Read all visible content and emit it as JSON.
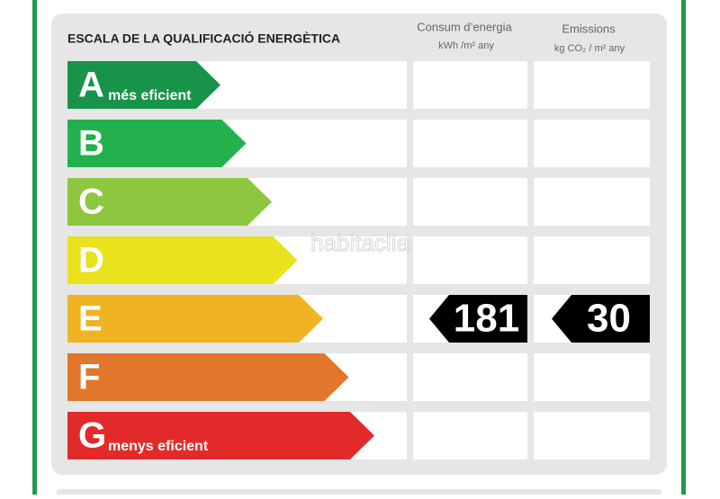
{
  "header": {
    "title": "ESCALA DE LA QUALIFICACIÓ ENERGÈTICA"
  },
  "columns": [
    {
      "title": "Consum d’energia",
      "unit": "kWh /m² any"
    },
    {
      "title": "Emissions",
      "unit": "kg CO₂ / m² any"
    }
  ],
  "classes": [
    {
      "letter": "A",
      "note": "més eficient",
      "color": "#17934a"
    },
    {
      "letter": "B",
      "color": "#22b14c"
    },
    {
      "letter": "C",
      "color": "#8dc63f"
    },
    {
      "letter": "D",
      "color": "#e9e21c"
    },
    {
      "letter": "E",
      "color": "#f0b321"
    },
    {
      "letter": "F",
      "color": "#e2762a"
    },
    {
      "letter": "G",
      "note": "menys eficient",
      "color": "#e32a2b"
    }
  ],
  "ratings": [
    {
      "value": 181,
      "class": "E"
    },
    {
      "value": 30,
      "class": "E"
    }
  ],
  "watermark": "habitaclia"
}
